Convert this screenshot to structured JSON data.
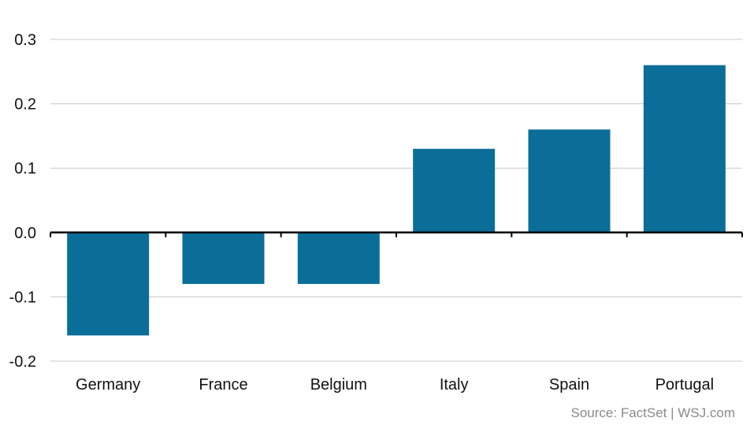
{
  "chart_data": {
    "type": "bar",
    "categories": [
      "Germany",
      "France",
      "Belgium",
      "Italy",
      "Spain",
      "Portugal"
    ],
    "values": [
      -0.16,
      -0.08,
      -0.08,
      0.13,
      0.16,
      0.26
    ],
    "yticks": [
      "0.3",
      "0.2",
      "0.1",
      "0.0",
      "-0.1",
      "-0.2"
    ],
    "ylim": [
      -0.2,
      0.3
    ],
    "grid": true,
    "bar_color": "#0b6e99",
    "grid_color": "#c8c8c8",
    "axis_color": "#000000"
  },
  "source": "Source: FactSet  |  WSJ.com"
}
